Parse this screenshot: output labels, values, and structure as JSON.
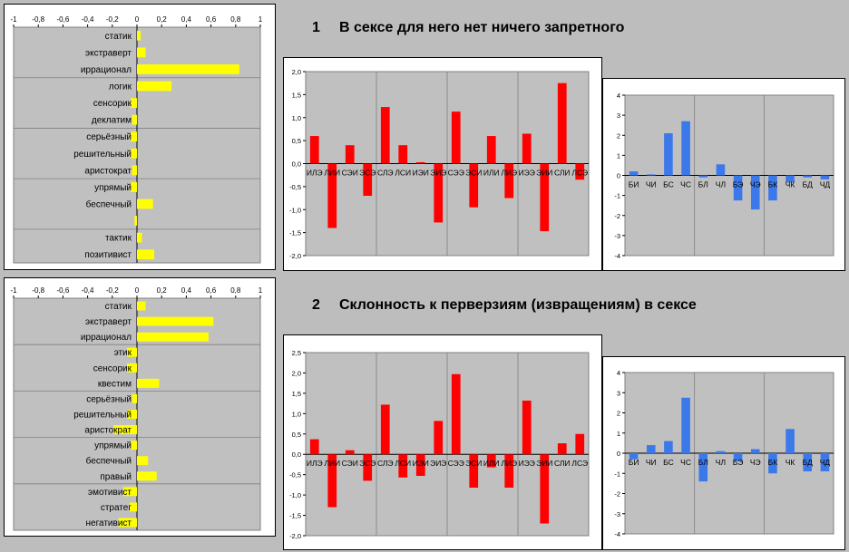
{
  "sections": [
    {
      "number": "1",
      "title": "В сексе для него нет ничего запретного",
      "charts": [
        {
          "type": "bar",
          "orientation": "horizontal",
          "xlim": [
            -1,
            1
          ],
          "xticks": [
            "-1",
            "-0,8",
            "-0,6",
            "-0,4",
            "-0,2",
            "0",
            "0,2",
            "0,4",
            "0,6",
            "0,8",
            "1"
          ],
          "bar_color": "#ffff00",
          "categories": [
            "статик",
            "экстраверт",
            "иррационал",
            "логик",
            "сенсорик",
            "деклатим",
            "серьёзный",
            "решительный",
            "аристократ",
            "упрямый",
            "беспечный",
            "",
            "тактик",
            "позитивист"
          ],
          "values": [
            0.03,
            0.07,
            0.83,
            0.28,
            -0.05,
            -0.04,
            -0.05,
            -0.05,
            -0.04,
            -0.05,
            0.13,
            -0.02,
            0.04,
            0.14
          ]
        },
        {
          "type": "bar",
          "ylim": [
            -2,
            2
          ],
          "yticks": [
            "2,0",
            "1,5",
            "1,0",
            "0,5",
            "0,0",
            "-0,5",
            "-1,0",
            "-1,5",
            "-2,0"
          ],
          "bar_color": "#ff0000",
          "categories": [
            "ИЛЭ",
            "ЛИИ",
            "СЭИ",
            "ЭСЭ",
            "СЛЭ",
            "ЛСИ",
            "ИЭИ",
            "ЭИЭ",
            "СЭЭ",
            "ЭСИ",
            "ИЛИ",
            "ЛИЭ",
            "ИЭЭ",
            "ЭИИ",
            "СЛИ",
            "ЛСЭ"
          ],
          "values": [
            0.6,
            -1.4,
            0.4,
            -0.7,
            1.23,
            0.4,
            0.03,
            -1.28,
            1.13,
            -0.95,
            0.6,
            -0.75,
            0.65,
            -1.47,
            1.75,
            -0.35
          ]
        },
        {
          "type": "bar",
          "ylim": [
            -4,
            4
          ],
          "yticks": [
            "4",
            "3",
            "2",
            "1",
            "0",
            "-1",
            "-2",
            "-3",
            "-4"
          ],
          "bar_color": "#3b78ea",
          "categories": [
            "БИ",
            "ЧИ",
            "БС",
            "ЧС",
            "БЛ",
            "ЧЛ",
            "БЭ",
            "ЧЭ",
            "БК",
            "ЧК",
            "БД",
            "ЧД"
          ],
          "values": [
            0.2,
            0.05,
            2.1,
            2.7,
            -0.1,
            0.55,
            -1.25,
            -1.7,
            -1.25,
            -0.35,
            -0.1,
            -0.2
          ]
        }
      ]
    },
    {
      "number": "2",
      "title": "Склонность к перверзиям (извращениям) в сексе",
      "charts": [
        {
          "type": "bar",
          "orientation": "horizontal",
          "xlim": [
            -1,
            1
          ],
          "xticks": [
            "-1",
            "-0,8",
            "-0,6",
            "-0,4",
            "-0,2",
            "0",
            "0,2",
            "0,4",
            "0,6",
            "0,8",
            "1"
          ],
          "bar_color": "#ffff00",
          "categories": [
            "статик",
            "экстраверт",
            "иррационал",
            "этик",
            "сенсорик",
            "квестим",
            "серьёзный",
            "решительный",
            "аристократ",
            "упрямый",
            "беспечный",
            "правый",
            "эмотивист",
            "стратег",
            "негативист"
          ],
          "values": [
            0.07,
            0.62,
            0.58,
            -0.08,
            -0.08,
            0.18,
            -0.04,
            -0.08,
            -0.19,
            -0.05,
            0.09,
            0.16,
            -0.11,
            -0.06,
            -0.15
          ]
        },
        {
          "type": "bar",
          "ylim": [
            -2,
            2.5
          ],
          "yticks": [
            "2,5",
            "2,0",
            "1,5",
            "1,0",
            "0,5",
            "0,0",
            "-0,5",
            "-1,0",
            "-1,5",
            "-2,0"
          ],
          "bar_color": "#ff0000",
          "categories": [
            "ИЛЭ",
            "ЛИИ",
            "СЭИ",
            "ЭСЭ",
            "СЛЭ",
            "ЛСИ",
            "ИЭИ",
            "ЭИЭ",
            "СЭЭ",
            "ЭСИ",
            "ИЛИ",
            "ЛИЭ",
            "ИЭЭ",
            "ЭИИ",
            "СЛИ",
            "ЛСЭ"
          ],
          "values": [
            0.37,
            -1.3,
            0.1,
            -0.65,
            1.22,
            -0.57,
            -0.53,
            0.82,
            1.97,
            -0.82,
            -0.32,
            -0.82,
            1.32,
            -1.7,
            0.27,
            0.5
          ]
        },
        {
          "type": "bar",
          "ylim": [
            -4,
            4
          ],
          "yticks": [
            "4",
            "3",
            "2",
            "1",
            "0",
            "-1",
            "-2",
            "-3",
            "-4"
          ],
          "bar_color": "#3b78ea",
          "categories": [
            "БИ",
            "ЧИ",
            "БС",
            "ЧС",
            "БЛ",
            "ЧЛ",
            "БЭ",
            "ЧЭ",
            "БК",
            "ЧК",
            "БД",
            "ЧД"
          ],
          "values": [
            -0.3,
            0.4,
            0.6,
            2.75,
            -1.4,
            0.1,
            -0.4,
            0.2,
            -1.0,
            1.2,
            -0.9,
            -0.9
          ]
        }
      ]
    }
  ]
}
